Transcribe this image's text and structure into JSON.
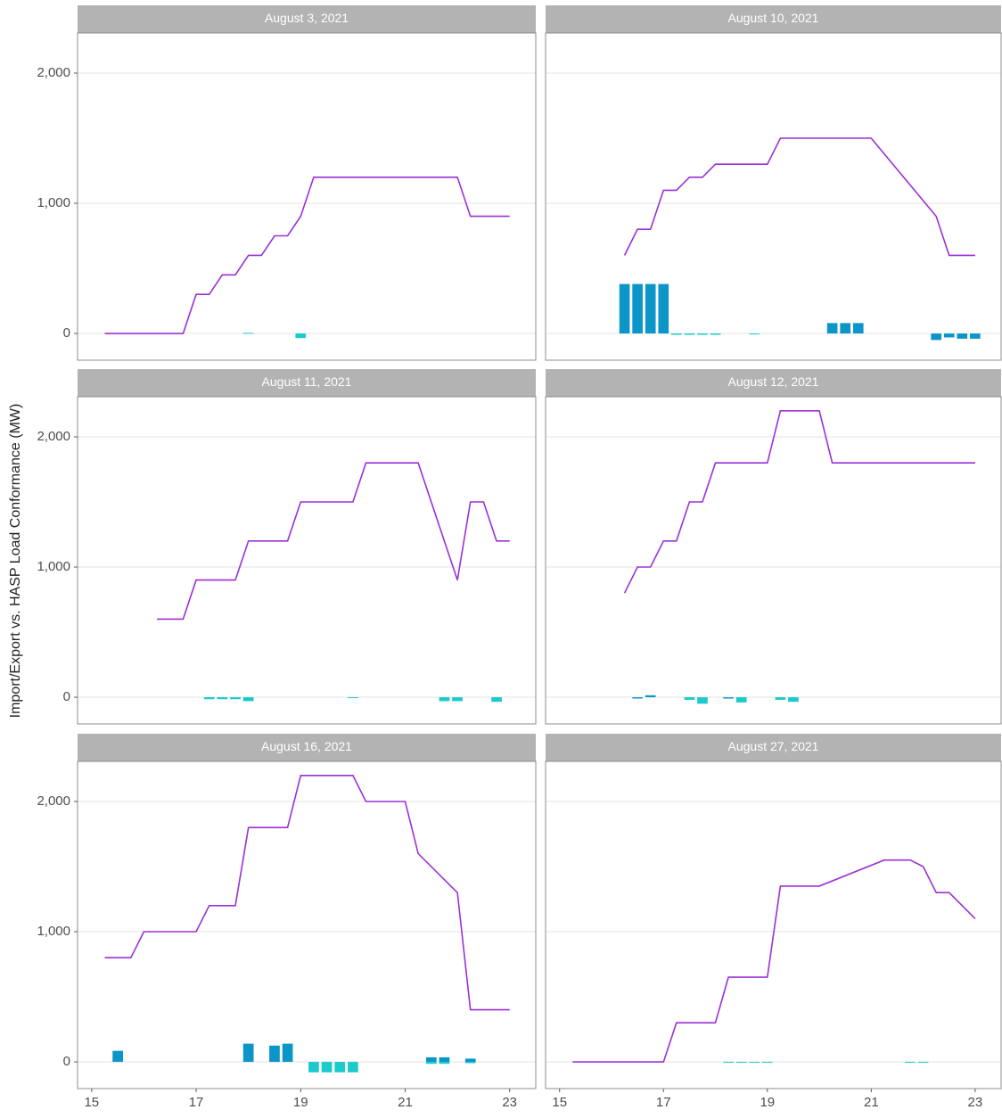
{
  "ylabel": "Import/Export vs. HASP Load Conformance (MW)",
  "chart_data": [
    {
      "type": "line",
      "title": "August 3, 2021",
      "xlim": [
        14.73,
        23.5
      ],
      "ylim": [
        -205,
        2308
      ],
      "yticks": [
        0,
        {
          "value": 1000,
          "label": "1,000"
        },
        {
          "value": 2000,
          "label": "2,000"
        }
      ],
      "x": [
        15.25,
        16.75,
        17,
        17.25,
        17.5,
        17.75,
        18,
        18.25,
        18.5,
        18.75,
        19,
        19.25,
        22,
        22.25,
        23
      ],
      "series": [
        {
          "color": "#9b30d6",
          "values": [
            0,
            0,
            300,
            300,
            450,
            450,
            600,
            600,
            750,
            750,
            900,
            1200,
            1200,
            900,
            900
          ]
        }
      ],
      "bars": [
        {
          "color": "#1bcbcc",
          "x": [
            18,
            19
          ],
          "values": [
            5,
            -35
          ]
        }
      ]
    },
    {
      "type": "line",
      "title": "August 10, 2021",
      "xlim": [
        14.73,
        23.5
      ],
      "ylim": [
        -205,
        2308
      ],
      "yticks": [
        0,
        {
          "value": 1000,
          "label": "1,000"
        },
        {
          "value": 2000,
          "label": "2,000"
        }
      ],
      "x": [
        16.25,
        16.5,
        16.75,
        17,
        17.25,
        17.5,
        17.75,
        18,
        19,
        19.25,
        21,
        22.25,
        22.5,
        23
      ],
      "series": [
        {
          "color": "#9b30d6",
          "values": [
            600,
            800,
            800,
            1100,
            1100,
            1200,
            1200,
            1300,
            1300,
            1500,
            1500,
            900,
            600,
            600
          ]
        }
      ],
      "bars": [
        {
          "color": "#0b95c8",
          "x": [
            16.25,
            16.5,
            16.75,
            17,
            20.25,
            20.5,
            20.75,
            22.25,
            22.5,
            22.75,
            23
          ],
          "values": [
            380,
            380,
            380,
            380,
            80,
            80,
            80,
            -50,
            -30,
            -40,
            -40
          ]
        },
        {
          "color": "#1bcbcc",
          "x": [
            17.25,
            17.5,
            17.75,
            18,
            18.75
          ],
          "values": [
            -10,
            -10,
            -10,
            -10,
            -5
          ]
        }
      ]
    },
    {
      "type": "line",
      "title": "August 11, 2021",
      "xlim": [
        14.73,
        23.5
      ],
      "ylim": [
        -205,
        2308
      ],
      "yticks": [
        0,
        {
          "value": 1000,
          "label": "1,000"
        },
        {
          "value": 2000,
          "label": "2,000"
        }
      ],
      "x": [
        16.25,
        16.75,
        17,
        17.75,
        18,
        18.75,
        19,
        20,
        20.25,
        21.25,
        22,
        22.25,
        22.5,
        22.75,
        23
      ],
      "series": [
        {
          "color": "#9b30d6",
          "values": [
            600,
            600,
            900,
            900,
            1200,
            1200,
            1500,
            1500,
            1800,
            1800,
            900,
            1500,
            1500,
            1200,
            1200
          ]
        }
      ],
      "bars": [
        {
          "color": "#1bcbcc",
          "x": [
            17.25,
            17.5,
            17.75,
            18,
            20,
            21.75,
            22,
            22.75
          ],
          "values": [
            -15,
            -15,
            -15,
            -30,
            -5,
            -30,
            -30,
            -35
          ]
        }
      ]
    },
    {
      "type": "line",
      "title": "August 12, 2021",
      "xlim": [
        14.73,
        23.5
      ],
      "ylim": [
        -205,
        2308
      ],
      "yticks": [
        0,
        {
          "value": 1000,
          "label": "1,000"
        },
        {
          "value": 2000,
          "label": "2,000"
        }
      ],
      "x": [
        16.25,
        16.5,
        16.75,
        17,
        17.25,
        17.5,
        17.75,
        18,
        19,
        19.25,
        20,
        20.25,
        23
      ],
      "series": [
        {
          "color": "#9b30d6",
          "values": [
            800,
            1000,
            1000,
            1200,
            1200,
            1500,
            1500,
            1800,
            1800,
            2200,
            2200,
            1800,
            1800
          ]
        }
      ],
      "bars": [
        {
          "color": "#0b95c8",
          "x": [
            16.5,
            16.75,
            18.25
          ],
          "values": [
            -10,
            15,
            -10
          ]
        },
        {
          "color": "#1bcbcc",
          "x": [
            17.5,
            17.75,
            18.5,
            19.25,
            19.5
          ],
          "values": [
            -20,
            -50,
            -40,
            -20,
            -35
          ]
        }
      ]
    },
    {
      "type": "line",
      "title": "August 16, 2021",
      "xlim": [
        14.73,
        23.5
      ],
      "ylim": [
        -205,
        2308
      ],
      "yticks": [
        0,
        {
          "value": 1000,
          "label": "1,000"
        },
        {
          "value": 2000,
          "label": "2,000"
        }
      ],
      "xticks": [
        15,
        17,
        19,
        21,
        23
      ],
      "x": [
        15.25,
        15.75,
        16,
        17,
        17.25,
        17.75,
        18,
        18.75,
        19,
        20,
        20.25,
        21,
        21.25,
        22,
        22.25,
        23
      ],
      "series": [
        {
          "color": "#9b30d6",
          "values": [
            800,
            800,
            1000,
            1000,
            1200,
            1200,
            1800,
            1800,
            2200,
            2200,
            2000,
            2000,
            1600,
            1300,
            400,
            400
          ]
        }
      ],
      "bars": [
        {
          "color": "#0b95c8",
          "x": [
            15.5,
            18,
            18.5,
            18.75,
            21.5,
            21.75,
            22.25
          ],
          "values": [
            85,
            140,
            125,
            140,
            35,
            35,
            25
          ]
        },
        {
          "color": "#1bcbcc",
          "x": [
            19.25,
            19.5,
            19.75,
            20,
            21.5,
            21.75,
            22.25
          ],
          "values": [
            -80,
            -80,
            -80,
            -80,
            -15,
            -15,
            -10
          ]
        }
      ]
    },
    {
      "type": "line",
      "title": "August 27, 2021",
      "xlim": [
        14.73,
        23.5
      ],
      "ylim": [
        -205,
        2308
      ],
      "yticks": [
        0,
        {
          "value": 1000,
          "label": "1,000"
        },
        {
          "value": 2000,
          "label": "2,000"
        }
      ],
      "xticks": [
        15,
        17,
        19,
        21,
        23
      ],
      "x": [
        15.25,
        17,
        17.25,
        18,
        18.25,
        19,
        19.25,
        20,
        21.25,
        21.75,
        22,
        22.25,
        22.5,
        23
      ],
      "series": [
        {
          "color": "#9b30d6",
          "values": [
            0,
            0,
            300,
            300,
            650,
            650,
            1350,
            1350,
            1550,
            1550,
            1500,
            1300,
            1300,
            1100
          ]
        }
      ],
      "bars": [
        {
          "color": "#1bcbcc",
          "x": [
            18.25,
            18.5,
            18.75,
            19,
            21.75,
            22
          ],
          "values": [
            -3,
            -3,
            -3,
            -3,
            -5,
            -5
          ]
        }
      ]
    }
  ]
}
